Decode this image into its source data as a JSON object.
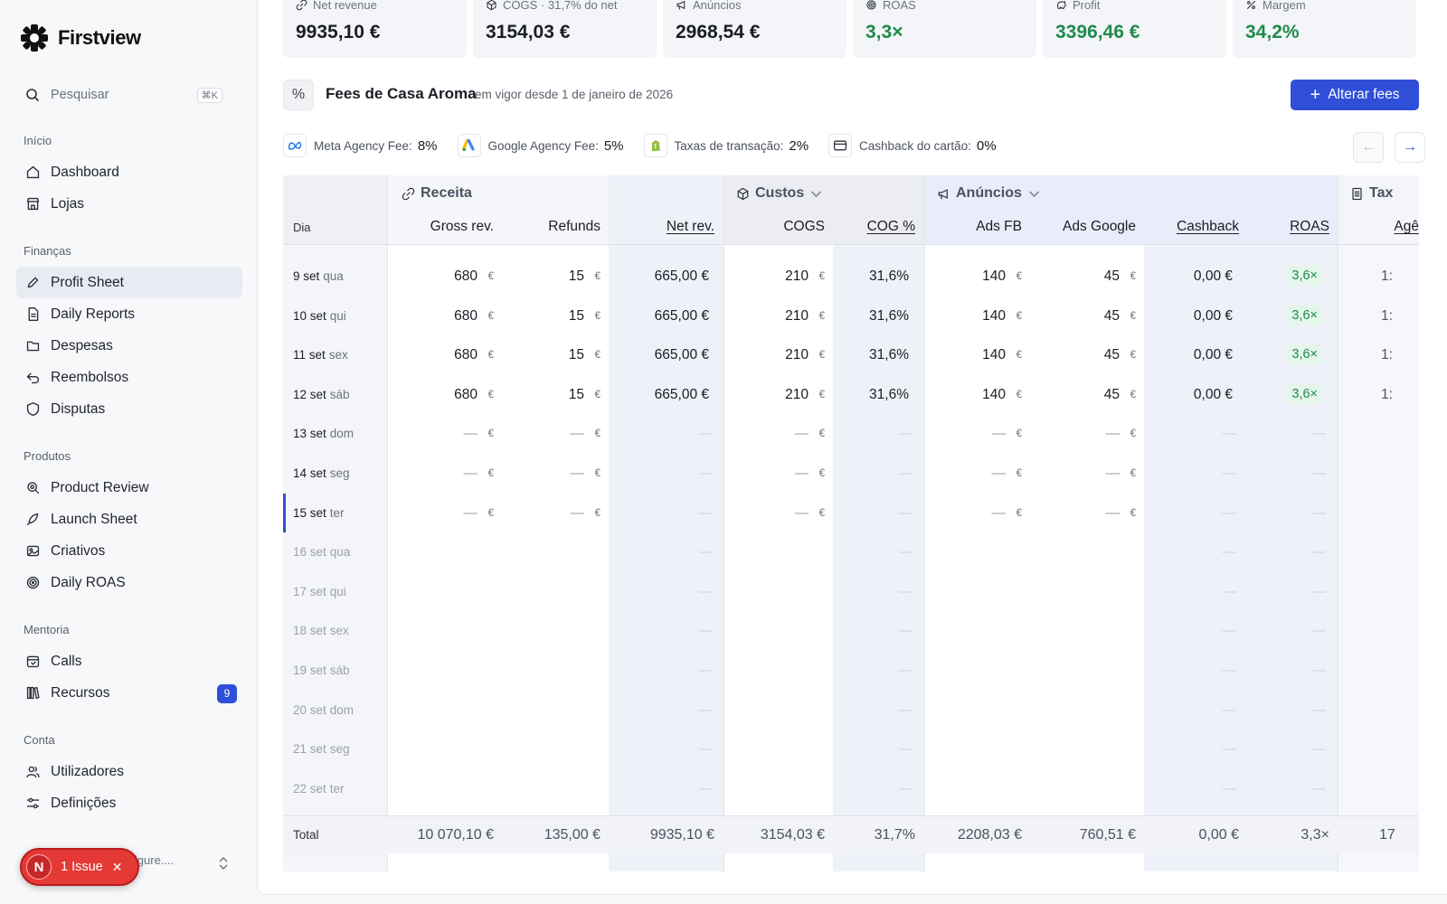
{
  "app": {
    "name": "Firstview"
  },
  "search": {
    "placeholder": "Pesquisar",
    "shortcut": "⌘K"
  },
  "nav": [
    {
      "title": "Início",
      "items": [
        {
          "label": "Dashboard",
          "icon": "home-icon"
        },
        {
          "label": "Lojas",
          "icon": "store-icon"
        }
      ]
    },
    {
      "title": "Finanças",
      "items": [
        {
          "label": "Profit Sheet",
          "icon": "pencil-icon",
          "active": true
        },
        {
          "label": "Daily Reports",
          "icon": "report-icon"
        },
        {
          "label": "Despesas",
          "icon": "folder-icon"
        },
        {
          "label": "Reembolsos",
          "icon": "undo-icon"
        },
        {
          "label": "Disputas",
          "icon": "shield-icon"
        }
      ]
    },
    {
      "title": "Produtos",
      "items": [
        {
          "label": "Product Review",
          "icon": "search-doc-icon"
        },
        {
          "label": "Launch Sheet",
          "icon": "rocket-icon"
        },
        {
          "label": "Criativos",
          "icon": "image-icon"
        },
        {
          "label": "Daily ROAS",
          "icon": "target-icon"
        }
      ]
    },
    {
      "title": "Mentoria",
      "items": [
        {
          "label": "Calls",
          "icon": "calendar-icon"
        },
        {
          "label": "Recursos",
          "icon": "library-icon",
          "badge": "9"
        }
      ]
    },
    {
      "title": "Conta",
      "items": [
        {
          "label": "Utilizadores",
          "icon": "users-icon"
        },
        {
          "label": "Definições",
          "icon": "sliders-icon"
        }
      ]
    }
  ],
  "account": {
    "email_fragment": "no.7figure...."
  },
  "issue": {
    "avatar": "N",
    "label": "1 Issue",
    "close": "✕"
  },
  "kpis": [
    {
      "label": "Net revenue",
      "value": "9935,10 €",
      "icon": "link-icon",
      "color": "#1a1d24"
    },
    {
      "label": "COGS · 31,7% do net",
      "value": "3154,03 €",
      "icon": "box-icon",
      "color": "#1a1d24"
    },
    {
      "label": "Anúncios",
      "value": "2968,54 €",
      "icon": "megaphone-icon",
      "color": "#1a1d24"
    },
    {
      "label": "ROAS",
      "value": "3,3×",
      "icon": "target-icon",
      "color": "#1f8a4c"
    },
    {
      "label": "Profit",
      "value": "3396,46 €",
      "icon": "piggy-icon",
      "color": "#1f8a4c"
    },
    {
      "label": "Margem",
      "value": "34,2%",
      "icon": "percent-icon",
      "color": "#1f8a4c"
    }
  ],
  "fees": {
    "icon_glyph": "%",
    "title": "Fees de Casa Aroma",
    "subtitle": "em vigor desde 1 de janeiro de 2026",
    "button": "Alterar fees",
    "button_icon": "+",
    "chips": [
      {
        "label": "Meta Agency Fee:",
        "value": "8%",
        "icon": "meta-icon"
      },
      {
        "label": "Google Agency Fee:",
        "value": "5%",
        "icon": "google-ads-icon"
      },
      {
        "label": "Taxas de transação:",
        "value": "2%",
        "icon": "shopify-icon"
      },
      {
        "label": "Cashback do cartão:",
        "value": "0%",
        "icon": "card-icon"
      }
    ],
    "prev_arrow": "←",
    "next_arrow": "→"
  },
  "table": {
    "day_header": "Dia",
    "groups": [
      {
        "label": "Receita",
        "icon": "link-icon"
      },
      {
        "label": "Custos",
        "icon": "box-icon"
      },
      {
        "label": "Anúncios",
        "icon": "megaphone-icon"
      },
      {
        "label": "Tax",
        "icon": "doc-icon"
      }
    ],
    "columns": [
      "Gross rev.",
      "Refunds",
      "Net rev.",
      "COGS",
      "COG %",
      "Ads FB",
      "Ads Google",
      "Cashback",
      "ROAS",
      "Agê"
    ],
    "rows": [
      {
        "date": "9 set",
        "weekday": "qua",
        "gross": "680",
        "refunds": "15",
        "net": "665,00 €",
        "cogs": "210",
        "cogp": "31,6%",
        "adsfb": "140",
        "adsg": "45",
        "cashback": "0,00 €",
        "roas": "3,6×",
        "age": "1:",
        "state": "filled"
      },
      {
        "date": "10 set",
        "weekday": "qui",
        "gross": "680",
        "refunds": "15",
        "net": "665,00 €",
        "cogs": "210",
        "cogp": "31,6%",
        "adsfb": "140",
        "adsg": "45",
        "cashback": "0,00 €",
        "roas": "3,6×",
        "age": "1:",
        "state": "filled"
      },
      {
        "date": "11 set",
        "weekday": "sex",
        "gross": "680",
        "refunds": "15",
        "net": "665,00 €",
        "cogs": "210",
        "cogp": "31,6%",
        "adsfb": "140",
        "adsg": "45",
        "cashback": "0,00 €",
        "roas": "3,6×",
        "age": "1:",
        "state": "filled"
      },
      {
        "date": "12 set",
        "weekday": "sáb",
        "gross": "680",
        "refunds": "15",
        "net": "665,00 €",
        "cogs": "210",
        "cogp": "31,6%",
        "adsfb": "140",
        "adsg": "45",
        "cashback": "0,00 €",
        "roas": "3,6×",
        "age": "1:",
        "state": "filled"
      },
      {
        "date": "13 set",
        "weekday": "dom",
        "state": "empty"
      },
      {
        "date": "14 set",
        "weekday": "seg",
        "state": "empty"
      },
      {
        "date": "15 set",
        "weekday": "ter",
        "state": "empty",
        "today": true
      },
      {
        "date": "16 set",
        "weekday": "qua",
        "state": "future"
      },
      {
        "date": "17 set",
        "weekday": "qui",
        "state": "future"
      },
      {
        "date": "18 set",
        "weekday": "sex",
        "state": "future"
      },
      {
        "date": "19 set",
        "weekday": "sáb",
        "state": "future"
      },
      {
        "date": "20 set",
        "weekday": "dom",
        "state": "future"
      },
      {
        "date": "21 set",
        "weekday": "seg",
        "state": "future"
      },
      {
        "date": "22 set",
        "weekday": "ter",
        "state": "future"
      }
    ],
    "dash": "—",
    "euro": "€",
    "total": {
      "label": "Total",
      "gross": "10 070,10 €",
      "refunds": "135,00 €",
      "net": "9935,10 €",
      "cogs": "3154,03 €",
      "cogp": "31,7%",
      "adsfb": "2208,03 €",
      "adsg": "760,51 €",
      "cashback": "0,00 €",
      "roas": "3,3×",
      "age": "17"
    }
  }
}
